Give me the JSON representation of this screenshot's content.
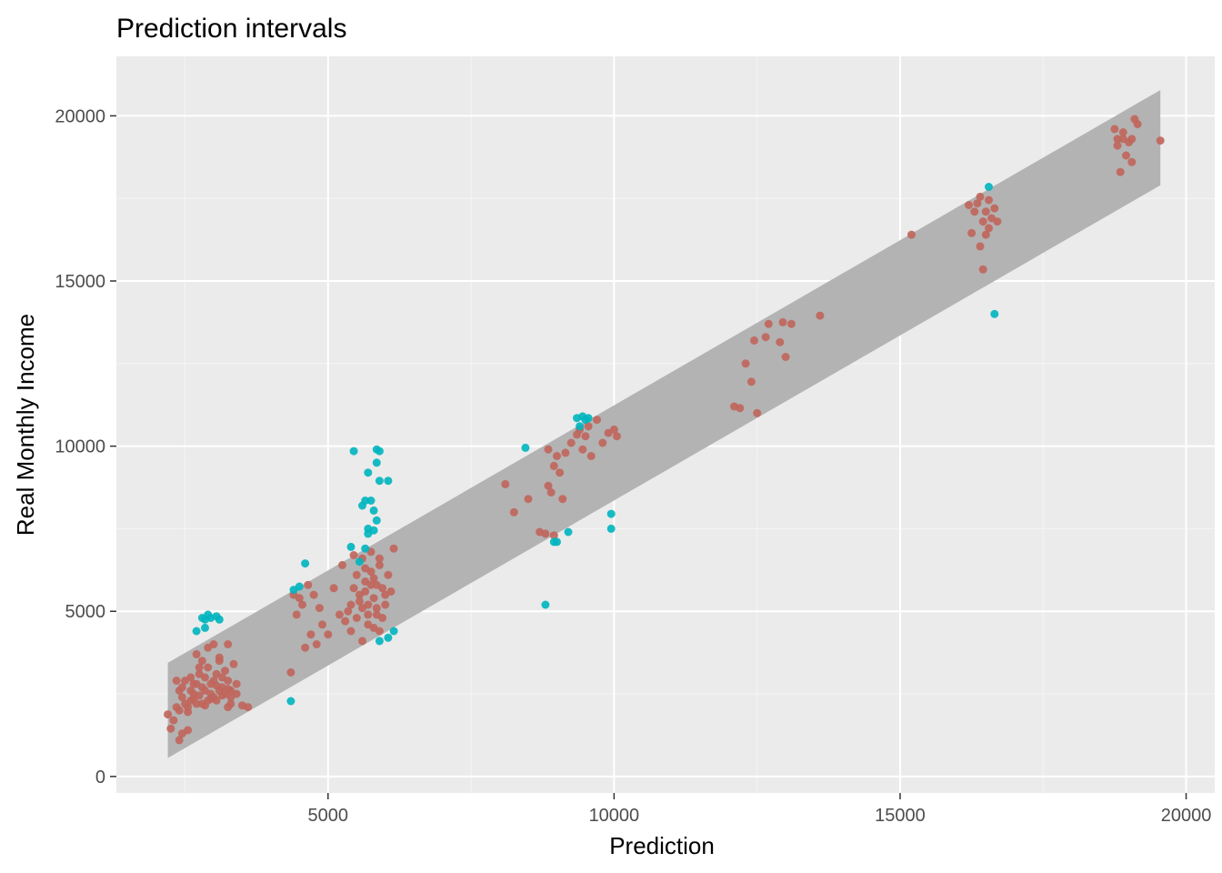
{
  "chart_data": {
    "type": "scatter",
    "title": "Prediction intervals",
    "xlabel": "Prediction",
    "ylabel": "Real Monthly Income",
    "xlim": [
      1300,
      20500
    ],
    "ylim": [
      -500,
      21800
    ],
    "x_ticks": [
      5000,
      10000,
      15000,
      20000
    ],
    "x_tick_labels": [
      "5000",
      "10000",
      "15000",
      "20000"
    ],
    "y_ticks": [
      0,
      5000,
      10000,
      15000,
      20000
    ],
    "y_tick_labels": [
      "0",
      "5000",
      "10000",
      "15000",
      "20000"
    ],
    "grid": true,
    "legend": "none",
    "colors": {
      "panel_background": "#ebebeb",
      "grid_major": "#ffffff",
      "grid_minor": "#f5f5f5",
      "band": "#b3b3b3",
      "inside_interval": "#c0655b",
      "outside_interval": "#00b5bf",
      "tick": "#333333"
    },
    "interval_band": {
      "x": [
        2200,
        19550
      ],
      "lower": [
        560,
        17900
      ],
      "upper": [
        3440,
        20780
      ]
    },
    "series": [
      {
        "color": "#c0655b",
        "points": [
          [
            2200,
            1880
          ],
          [
            2250,
            1450
          ],
          [
            2300,
            1700
          ],
          [
            2350,
            2900
          ],
          [
            2400,
            1100
          ],
          [
            2450,
            1300
          ],
          [
            2500,
            2200
          ],
          [
            2550,
            1400
          ],
          [
            2350,
            2100
          ],
          [
            2400,
            2600
          ],
          [
            2600,
            2300
          ],
          [
            2650,
            2800
          ],
          [
            2700,
            3700
          ],
          [
            2750,
            3100
          ],
          [
            2800,
            2200
          ],
          [
            2850,
            2600
          ],
          [
            2900,
            3300
          ],
          [
            2950,
            2500
          ],
          [
            3000,
            2900
          ],
          [
            3050,
            2300
          ],
          [
            3100,
            3500
          ],
          [
            3150,
            2700
          ],
          [
            3200,
            3200
          ],
          [
            3250,
            2100
          ],
          [
            3300,
            2400
          ],
          [
            3400,
            2800
          ],
          [
            3500,
            2150
          ],
          [
            2450,
            2400
          ],
          [
            2500,
            2900
          ],
          [
            2550,
            2100
          ],
          [
            2600,
            3000
          ],
          [
            2650,
            2500
          ],
          [
            2700,
            2200
          ],
          [
            2750,
            3300
          ],
          [
            2800,
            2700
          ],
          [
            2850,
            3000
          ],
          [
            2900,
            2300
          ],
          [
            2950,
            2800
          ],
          [
            3000,
            2400
          ],
          [
            3050,
            3100
          ],
          [
            3100,
            2600
          ],
          [
            3150,
            3000
          ],
          [
            3200,
            2500
          ],
          [
            3250,
            2900
          ],
          [
            3300,
            2600
          ],
          [
            3350,
            3400
          ],
          [
            2900,
            3900
          ],
          [
            3000,
            4000
          ],
          [
            3100,
            3600
          ],
          [
            2800,
            3500
          ],
          [
            2700,
            2800
          ],
          [
            2600,
            2600
          ],
          [
            3250,
            4000
          ],
          [
            3300,
            2200
          ],
          [
            3400,
            2500
          ],
          [
            3600,
            2100
          ],
          [
            2550,
            1950
          ],
          [
            2450,
            2700
          ],
          [
            2750,
            2450
          ],
          [
            2950,
            2350
          ],
          [
            3150,
            2450
          ],
          [
            2850,
            2150
          ],
          [
            3050,
            2750
          ],
          [
            3250,
            2650
          ],
          [
            2400,
            2000
          ],
          [
            2650,
            2350
          ],
          [
            4350,
            3150
          ],
          [
            4400,
            5500
          ],
          [
            4450,
            4900
          ],
          [
            4500,
            5400
          ],
          [
            4550,
            5200
          ],
          [
            4600,
            3900
          ],
          [
            4650,
            5800
          ],
          [
            4700,
            4300
          ],
          [
            4750,
            5500
          ],
          [
            4800,
            4000
          ],
          [
            4850,
            5100
          ],
          [
            4900,
            4600
          ],
          [
            5000,
            4300
          ],
          [
            5100,
            5700
          ],
          [
            5200,
            4900
          ],
          [
            5250,
            6400
          ],
          [
            5300,
            4700
          ],
          [
            5350,
            5000
          ],
          [
            5400,
            4400
          ],
          [
            5450,
            6700
          ],
          [
            5500,
            4800
          ],
          [
            5550,
            5300
          ],
          [
            5600,
            4100
          ],
          [
            5650,
            5900
          ],
          [
            5700,
            4600
          ],
          [
            5750,
            6200
          ],
          [
            5800,
            5400
          ],
          [
            5850,
            4900
          ],
          [
            5900,
            6400
          ],
          [
            5950,
            5700
          ],
          [
            6000,
            5200
          ],
          [
            6050,
            6100
          ],
          [
            6100,
            5600
          ],
          [
            6150,
            6900
          ],
          [
            5600,
            6600
          ],
          [
            5650,
            5600
          ],
          [
            5700,
            5200
          ],
          [
            5750,
            5800
          ],
          [
            5800,
            6000
          ],
          [
            5850,
            5100
          ],
          [
            5900,
            6600
          ],
          [
            5950,
            4800
          ],
          [
            6000,
            5500
          ],
          [
            5650,
            6300
          ],
          [
            5700,
            4900
          ],
          [
            5750,
            6800
          ],
          [
            5800,
            4500
          ],
          [
            5850,
            5800
          ],
          [
            5900,
            4400
          ],
          [
            5550,
            5500
          ],
          [
            5600,
            5100
          ],
          [
            5500,
            6100
          ],
          [
            5450,
            5700
          ],
          [
            5400,
            5200
          ],
          [
            8100,
            8850
          ],
          [
            8250,
            8000
          ],
          [
            8500,
            8400
          ],
          [
            8700,
            7400
          ],
          [
            8800,
            7350
          ],
          [
            8850,
            9900
          ],
          [
            8900,
            8600
          ],
          [
            8950,
            9400
          ],
          [
            9000,
            9700
          ],
          [
            9050,
            9200
          ],
          [
            9100,
            8400
          ],
          [
            9150,
            9800
          ],
          [
            9250,
            10100
          ],
          [
            9350,
            10350
          ],
          [
            9400,
            10500
          ],
          [
            9450,
            9900
          ],
          [
            9500,
            10300
          ],
          [
            9550,
            10600
          ],
          [
            9600,
            9700
          ],
          [
            9700,
            10800
          ],
          [
            9800,
            10100
          ],
          [
            9900,
            10400
          ],
          [
            10000,
            10500
          ],
          [
            10050,
            10300
          ],
          [
            8850,
            8800
          ],
          [
            8950,
            7300
          ],
          [
            12100,
            11200
          ],
          [
            12200,
            11150
          ],
          [
            12300,
            12500
          ],
          [
            12400,
            11950
          ],
          [
            12450,
            13200
          ],
          [
            12500,
            11000
          ],
          [
            12650,
            13300
          ],
          [
            12700,
            13700
          ],
          [
            12900,
            13150
          ],
          [
            12950,
            13750
          ],
          [
            13000,
            12700
          ],
          [
            13100,
            13700
          ],
          [
            13600,
            13950
          ],
          [
            15200,
            16400
          ],
          [
            16200,
            17300
          ],
          [
            16250,
            16450
          ],
          [
            16300,
            17100
          ],
          [
            16350,
            17350
          ],
          [
            16400,
            17550
          ],
          [
            16400,
            16050
          ],
          [
            16450,
            15350
          ],
          [
            16450,
            16800
          ],
          [
            16500,
            17100
          ],
          [
            16550,
            16600
          ],
          [
            16600,
            16900
          ],
          [
            16650,
            17200
          ],
          [
            16700,
            16800
          ],
          [
            16550,
            17450
          ],
          [
            16500,
            16400
          ],
          [
            18750,
            19600
          ],
          [
            18800,
            19100
          ],
          [
            18850,
            18300
          ],
          [
            18900,
            19300
          ],
          [
            18950,
            18800
          ],
          [
            19000,
            19200
          ],
          [
            19050,
            18600
          ],
          [
            19100,
            19900
          ],
          [
            19150,
            19750
          ],
          [
            19050,
            19300
          ],
          [
            18900,
            19500
          ],
          [
            18800,
            19300
          ],
          [
            19550,
            19250
          ]
        ]
      },
      {
        "color": "#00b5bf",
        "points": [
          [
            2700,
            4400
          ],
          [
            2800,
            4800
          ],
          [
            2850,
            4750
          ],
          [
            2900,
            4900
          ],
          [
            2950,
            4800
          ],
          [
            3050,
            4850
          ],
          [
            3100,
            4750
          ],
          [
            2850,
            4500
          ],
          [
            4350,
            2280
          ],
          [
            4400,
            5650
          ],
          [
            4500,
            5750
          ],
          [
            4600,
            6450
          ],
          [
            5400,
            6950
          ],
          [
            5450,
            9850
          ],
          [
            5550,
            6500
          ],
          [
            5600,
            8200
          ],
          [
            5650,
            8350
          ],
          [
            5700,
            9200
          ],
          [
            5700,
            7500
          ],
          [
            5750,
            8350
          ],
          [
            5800,
            8050
          ],
          [
            5800,
            7450
          ],
          [
            5850,
            9500
          ],
          [
            5850,
            9900
          ],
          [
            5850,
            7750
          ],
          [
            5900,
            9850
          ],
          [
            5900,
            8950
          ],
          [
            6050,
            8950
          ],
          [
            5700,
            7350
          ],
          [
            5900,
            4100
          ],
          [
            6050,
            4200
          ],
          [
            6150,
            4400
          ],
          [
            5650,
            6900
          ],
          [
            8450,
            9950
          ],
          [
            8800,
            5200
          ],
          [
            8950,
            7100
          ],
          [
            9000,
            7100
          ],
          [
            9200,
            7400
          ],
          [
            9350,
            10850
          ],
          [
            9450,
            10900
          ],
          [
            9500,
            10800
          ],
          [
            9550,
            10850
          ],
          [
            9400,
            10600
          ],
          [
            9950,
            7950
          ],
          [
            9950,
            7500
          ],
          [
            16550,
            17850
          ],
          [
            16650,
            14000
          ]
        ]
      }
    ]
  }
}
